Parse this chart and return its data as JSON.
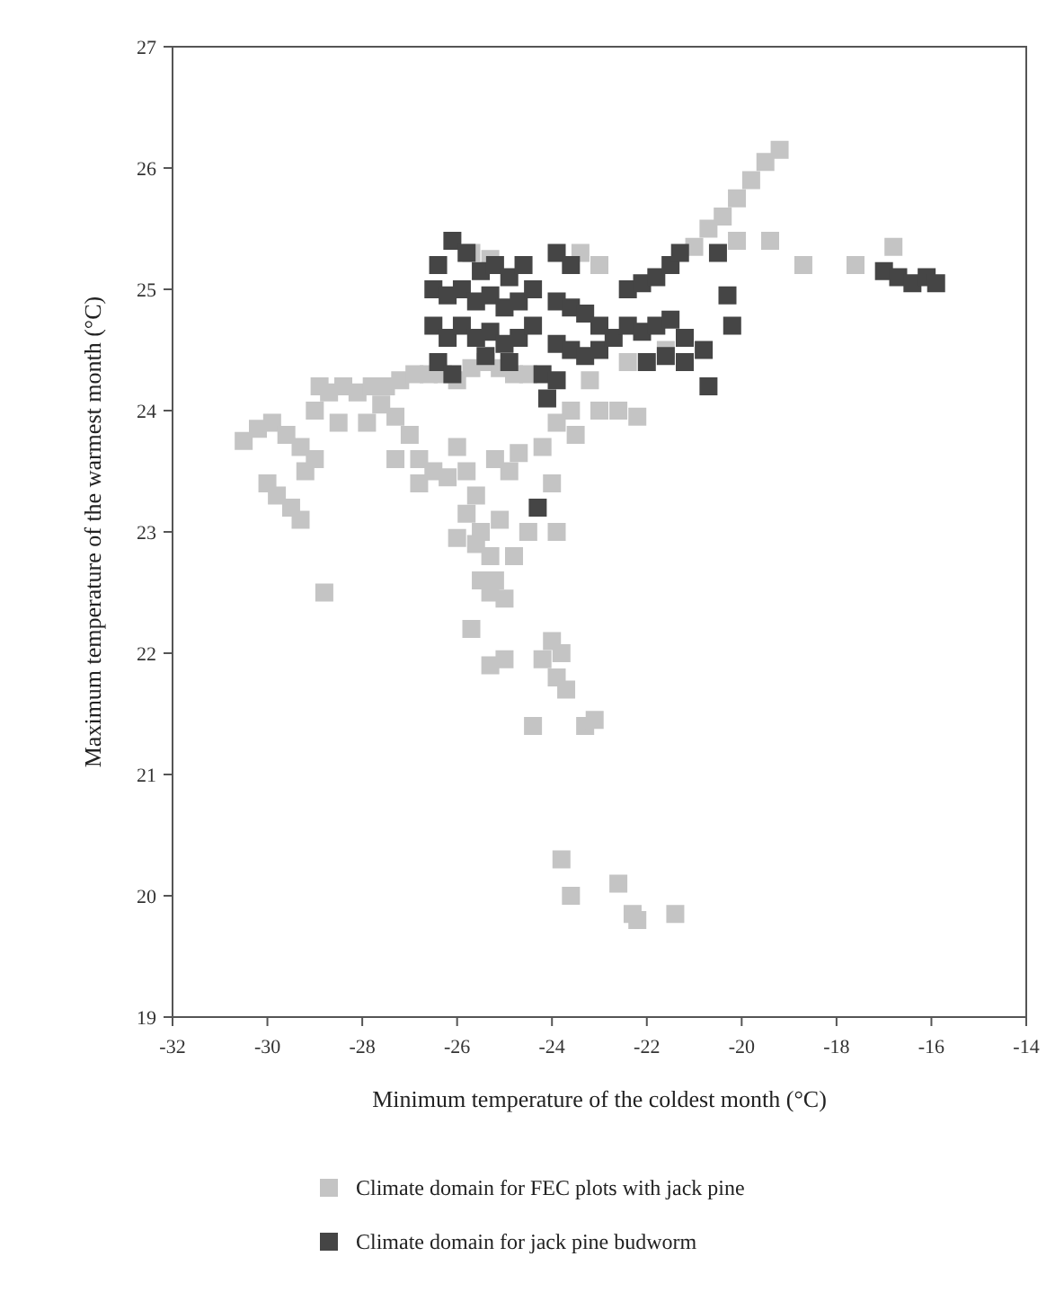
{
  "chart_data": {
    "type": "scatter",
    "xlabel": "Minimum temperature of the coldest month (°C)",
    "ylabel": "Maximum temperature of the warmest month (°C)",
    "xlim": [
      -32,
      -14
    ],
    "ylim": [
      19,
      27
    ],
    "xticks": [
      -32,
      -30,
      -28,
      -26,
      -24,
      -22,
      -20,
      -18,
      -16,
      -14
    ],
    "yticks": [
      19,
      20,
      21,
      22,
      23,
      24,
      25,
      26,
      27
    ],
    "grid": false,
    "legend": "bottom",
    "marker": "square",
    "series": [
      {
        "name": "Climate domain for FEC plots with jack pine",
        "color": "#c4c4c4",
        "x": [
          -19.2,
          -19.5,
          -19.8,
          -20.1,
          -20.4,
          -20.7,
          -21.0,
          -20.1,
          -19.4,
          -18.7,
          -17.6,
          -16.8,
          -25.7,
          -25.3,
          -23.4,
          -23.0,
          -30.5,
          -30.2,
          -29.9,
          -29.6,
          -29.3,
          -29.0,
          -28.7,
          -28.4,
          -28.1,
          -27.8,
          -27.5,
          -27.2,
          -26.9,
          -26.6,
          -26.3,
          -26.0,
          -25.7,
          -25.4,
          -25.1,
          -24.8,
          -24.5,
          -30.0,
          -29.8,
          -29.5,
          -29.3,
          -29.2,
          -28.8,
          -29.0,
          -28.5,
          -27.9,
          -27.3,
          -27.0,
          -26.8,
          -26.5,
          -26.8,
          -26.2,
          -26.0,
          -25.8,
          -25.6,
          -25.8,
          -25.5,
          -25.3,
          -25.2,
          -25.0,
          -26.0,
          -25.6,
          -25.5,
          -25.3,
          -25.7,
          -25.0,
          -25.3,
          -25.1,
          -24.9,
          -25.2,
          -24.7,
          -24.5,
          -24.8,
          -24.0,
          -23.9,
          -24.4,
          -24.0,
          -23.8,
          -24.2,
          -23.9,
          -23.7,
          -23.3,
          -23.1,
          -23.8,
          -23.6,
          -22.6,
          -22.3,
          -22.2,
          -21.4,
          -24.2,
          -23.9,
          -23.6,
          -23.0,
          -22.6,
          -22.2,
          -23.5,
          -23.2,
          -22.4,
          -21.6,
          -27.3,
          -27.6,
          -28.9
        ],
        "values": [
          26.15,
          26.05,
          25.9,
          25.75,
          25.6,
          25.5,
          25.35,
          25.4,
          25.4,
          25.2,
          25.2,
          25.35,
          25.3,
          25.25,
          25.3,
          25.2,
          23.75,
          23.85,
          23.9,
          23.8,
          23.7,
          24.0,
          24.15,
          24.2,
          24.15,
          24.2,
          24.2,
          24.25,
          24.3,
          24.3,
          24.3,
          24.25,
          24.35,
          24.4,
          24.35,
          24.3,
          24.3,
          23.4,
          23.3,
          23.2,
          23.1,
          23.5,
          22.5,
          23.6,
          23.9,
          23.9,
          23.95,
          23.8,
          23.6,
          23.5,
          23.4,
          23.45,
          23.7,
          23.5,
          23.3,
          23.15,
          23.0,
          22.8,
          22.6,
          22.45,
          22.95,
          22.9,
          22.6,
          22.5,
          22.2,
          21.95,
          21.9,
          23.1,
          23.5,
          23.6,
          23.65,
          23.0,
          22.8,
          23.4,
          23.0,
          21.4,
          22.1,
          22.0,
          21.95,
          21.8,
          21.7,
          21.4,
          21.45,
          20.3,
          20.0,
          20.1,
          19.85,
          19.8,
          19.85,
          23.7,
          23.9,
          24.0,
          24.0,
          24.0,
          23.95,
          23.8,
          24.25,
          24.4,
          24.5,
          23.6,
          24.05,
          24.2
        ]
      },
      {
        "name": "Climate domain for jack pine budworm",
        "color": "#454545",
        "x": [
          -26.1,
          -25.8,
          -26.4,
          -25.5,
          -25.2,
          -24.9,
          -24.6,
          -26.5,
          -26.2,
          -25.9,
          -25.6,
          -25.3,
          -25.0,
          -24.7,
          -24.4,
          -26.5,
          -26.2,
          -25.9,
          -25.6,
          -25.3,
          -25.0,
          -24.7,
          -26.4,
          -26.1,
          -25.4,
          -24.9,
          -24.4,
          -24.2,
          -24.1,
          -24.3,
          -23.9,
          -23.6,
          -23.9,
          -23.6,
          -23.3,
          -23.0,
          -23.9,
          -23.6,
          -23.3,
          -23.0,
          -22.7,
          -23.9,
          -22.4,
          -22.1,
          -21.8,
          -21.5,
          -21.3,
          -22.4,
          -22.1,
          -21.8,
          -21.5,
          -21.2,
          -22.0,
          -21.6,
          -21.2,
          -20.8,
          -20.7,
          -20.5,
          -20.3,
          -20.2,
          -17.0,
          -16.7,
          -16.4,
          -16.1,
          -15.9
        ],
        "values": [
          25.4,
          25.3,
          25.2,
          25.15,
          25.2,
          25.1,
          25.2,
          25.0,
          24.95,
          25.0,
          24.9,
          24.95,
          24.85,
          24.9,
          25.0,
          24.7,
          24.6,
          24.7,
          24.6,
          24.65,
          24.55,
          24.6,
          24.4,
          24.3,
          24.45,
          24.4,
          24.7,
          24.3,
          24.1,
          23.2,
          25.3,
          25.2,
          24.9,
          24.85,
          24.8,
          24.7,
          24.55,
          24.5,
          24.45,
          24.5,
          24.6,
          24.25,
          25.0,
          25.05,
          25.1,
          25.2,
          25.3,
          24.7,
          24.65,
          24.7,
          24.75,
          24.6,
          24.4,
          24.45,
          24.4,
          24.5,
          24.2,
          25.3,
          24.95,
          24.7,
          25.15,
          25.1,
          25.05,
          25.1,
          25.05
        ]
      }
    ]
  }
}
